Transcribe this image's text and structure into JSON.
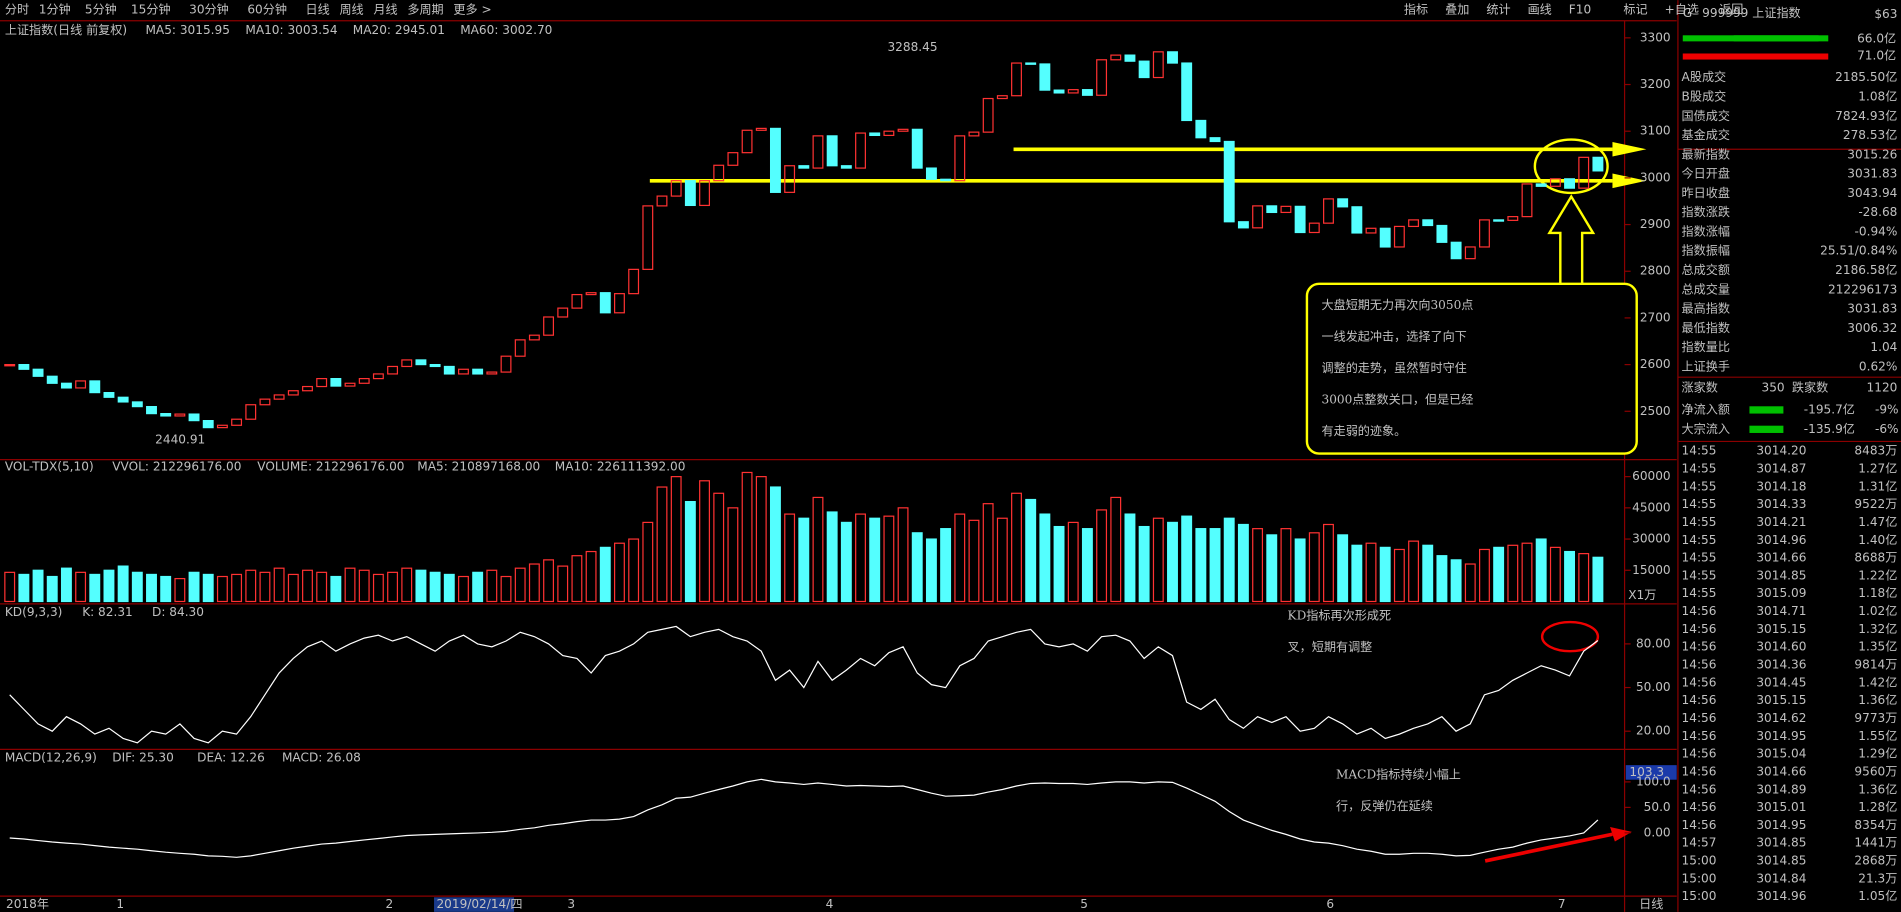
{
  "toolbar": {
    "left": [
      "分时",
      "1分钟",
      "5分钟",
      "15分钟",
      "30分钟",
      "60分钟",
      "日线",
      "周线",
      "月线",
      "多周期",
      "更多 >"
    ],
    "right": [
      "指标",
      "叠加",
      "统计",
      "画线",
      "F10",
      "标记",
      "+自选",
      "返回"
    ]
  },
  "price": {
    "type": "candlestick",
    "title": "上证指数(日线 前复权)",
    "ma_labels": [
      "MA5: 3015.95",
      "MA10: 3003.54",
      "MA20: 2945.01",
      "MA60: 3002.70"
    ],
    "high_label": "3288.45",
    "low_label": "2440.91",
    "ylim": [
      2399,
      3334
    ],
    "yticks": [
      2500,
      2600,
      2700,
      2800,
      2900,
      3000,
      3100,
      3200,
      3300
    ],
    "close": [
      2600,
      2590,
      2575,
      2560,
      2550,
      2565,
      2540,
      2530,
      2520,
      2510,
      2495,
      2490,
      2494,
      2480,
      2465,
      2470,
      2483,
      2514,
      2526,
      2535,
      2544,
      2553,
      2570,
      2554,
      2560,
      2570,
      2580,
      2596,
      2610,
      2600,
      2596,
      2580,
      2590,
      2580,
      2584,
      2618,
      2653,
      2663,
      2702,
      2721,
      2750,
      2754,
      2711,
      2752,
      2804,
      2940,
      2961,
      2994,
      2941,
      2994,
      3027,
      3054,
      3102,
      3106,
      2969,
      3026,
      3021,
      3090,
      3026,
      3021,
      3096,
      3091,
      3100,
      3104,
      3021,
      2997,
      2994,
      3090,
      3098,
      3170,
      3176,
      3246,
      3244,
      3188,
      3182,
      3189,
      3177,
      3253,
      3263,
      3250,
      3215,
      3270,
      3246,
      3123,
      3086,
      3078,
      2906,
      2893,
      2940,
      2926,
      2939,
      2883,
      2903,
      2955,
      2938,
      2882,
      2892,
      2852,
      2896,
      2910,
      2898,
      2862,
      2827,
      2852,
      2910,
      2909,
      2917,
      2987,
      2982,
      2998,
      2978,
      3044,
      3015
    ]
  },
  "volume": {
    "type": "bar",
    "labels": [
      "VOL-TDX(5,10)",
      "VVOL: 212296176.00",
      "VOLUME: 212296176.00",
      "MA5: 210897168.00",
      "MA10: 226111392.00"
    ],
    "unit": "X1万",
    "ylim": [
      0,
      67000
    ],
    "yticks": [
      15000,
      30000,
      45000,
      60000
    ],
    "values": [
      14000,
      13000,
      15000,
      12000,
      16000,
      14000,
      13000,
      15000,
      17000,
      14000,
      13000,
      12000,
      11000,
      14000,
      13000,
      12000,
      13000,
      15000,
      14000,
      16000,
      13000,
      15000,
      14000,
      12000,
      16000,
      15000,
      13000,
      14000,
      16000,
      15000,
      14000,
      13000,
      12000,
      14000,
      15000,
      12000,
      16000,
      18000,
      20000,
      17000,
      22000,
      24000,
      26000,
      28000,
      30000,
      38000,
      55000,
      60000,
      48000,
      58000,
      52000,
      45000,
      62000,
      60000,
      55000,
      42000,
      40000,
      50000,
      43000,
      38000,
      42000,
      40000,
      41000,
      45000,
      33000,
      30000,
      35000,
      42000,
      39000,
      47000,
      40000,
      52000,
      49000,
      42000,
      36000,
      38000,
      35000,
      44000,
      50000,
      42000,
      36000,
      40000,
      38000,
      41000,
      35000,
      35000,
      40000,
      37000,
      35000,
      32000,
      35000,
      30000,
      33000,
      37000,
      32000,
      27000,
      28000,
      26000,
      25000,
      29000,
      27000,
      22000,
      20000,
      18000,
      25000,
      26000,
      27000,
      28000,
      30000,
      26000,
      24000,
      23000,
      21229.6
    ]
  },
  "kd": {
    "type": "line",
    "labels": [
      "KD(9,3,3)",
      "K: 82.31",
      "D: 84.30"
    ],
    "ylim": [
      7.5,
      105.8
    ],
    "yticks": [
      {
        "value": 80,
        "label": "80.00"
      },
      {
        "value": 50,
        "label": "50.00"
      },
      {
        "value": 20,
        "label": "20.00"
      }
    ],
    "k": [
      45,
      35,
      25,
      20,
      30,
      25,
      18,
      22,
      15,
      12,
      20,
      18,
      25,
      15,
      12,
      20,
      18,
      30,
      45,
      60,
      70,
      78,
      82,
      75,
      80,
      84,
      86,
      82,
      85,
      80,
      75,
      82,
      86,
      80,
      78,
      82,
      88,
      85,
      80,
      72,
      70,
      60,
      72,
      75,
      80,
      88,
      90,
      92,
      85,
      88,
      90,
      85,
      82,
      75,
      55,
      62,
      50,
      68,
      55,
      62,
      70,
      65,
      74,
      78,
      60,
      52,
      50,
      65,
      70,
      82,
      85,
      88,
      90,
      80,
      78,
      80,
      75,
      85,
      86,
      82,
      70,
      78,
      72,
      40,
      35,
      42,
      28,
      22,
      30,
      26,
      30,
      20,
      22,
      30,
      25,
      18,
      22,
      15,
      18,
      22,
      25,
      30,
      20,
      25,
      45,
      48,
      55,
      60,
      65,
      62,
      58,
      75,
      82.31
    ]
  },
  "macd": {
    "type": "line",
    "labels": [
      "MACD(12,26,9)",
      "DIF: 25.30",
      "DEA: 12.26",
      "MACD: 26.08"
    ],
    "marker": "103.3",
    "ylim": [
      -124,
      159
    ],
    "yticks": [
      {
        "value": 100,
        "label": "100.0"
      },
      {
        "value": 50,
        "label": "50.0"
      },
      {
        "value": 0,
        "label": "0.00"
      }
    ],
    "dif": [
      -10,
      -12,
      -15,
      -18,
      -20,
      -22,
      -25,
      -28,
      -30,
      -32,
      -35,
      -38,
      -40,
      -42,
      -45,
      -46,
      -48,
      -45,
      -40,
      -35,
      -30,
      -26,
      -22,
      -20,
      -17,
      -14,
      -11,
      -8,
      -5,
      -4,
      -3,
      -2,
      -1,
      0,
      1,
      3,
      7,
      10,
      15,
      18,
      22,
      25,
      25,
      27,
      32,
      45,
      55,
      68,
      70,
      78,
      85,
      92,
      100,
      105,
      100,
      98,
      95,
      98,
      95,
      92,
      93,
      92,
      91,
      92,
      85,
      78,
      72,
      73,
      74,
      80,
      85,
      92,
      97,
      98,
      97,
      97,
      95,
      98,
      100,
      100,
      98,
      100,
      99,
      88,
      75,
      62,
      42,
      25,
      15,
      5,
      -3,
      -12,
      -18,
      -20,
      -25,
      -32,
      -36,
      -42,
      -42,
      -40,
      -40,
      -42,
      -45,
      -44,
      -38,
      -32,
      -28,
      -20,
      -14,
      -10,
      -6,
      0,
      25.3
    ]
  },
  "xaxis": [
    "2018年",
    "1",
    "2",
    "2019/02/14/四",
    "3",
    "4",
    "5",
    "6",
    "7",
    "日线"
  ],
  "annotations": {
    "price_box": [
      "大盘短期无力再次向3050点",
      "一线发起冲击，选择了向下",
      "调整的走势，虽然暂时守住",
      "3000点整数关口，但是已经",
      "有走弱的迹象。"
    ],
    "kd": [
      "KD指标再次形成死",
      "叉，短期有调整"
    ],
    "macd": [
      "MACD指标持续小幅上",
      "行，反弹仍在延续"
    ]
  },
  "panel": {
    "badge": "G",
    "title": "999999 上证指数",
    "tag": "$63",
    "bars": [
      "66.0亿",
      "71.0亿"
    ],
    "rows": [
      [
        "A股成交",
        "2185.50亿"
      ],
      [
        "B股成交",
        "1.08亿"
      ],
      [
        "国债成交",
        "7824.93亿"
      ],
      [
        "基金成交",
        "278.53亿"
      ],
      [
        "最新指数",
        "3015.26"
      ],
      [
        "今日开盘",
        "3031.83"
      ],
      [
        "昨日收盘",
        "3043.94"
      ],
      [
        "指数涨跌",
        "-28.68"
      ],
      [
        "指数涨幅",
        "-0.94%"
      ],
      [
        "指数振幅",
        "25.51/0.84%"
      ],
      [
        "总成交额",
        "2186.58亿"
      ],
      [
        "总成交量",
        "212296173"
      ],
      [
        "最高指数",
        "3031.83"
      ],
      [
        "最低指数",
        "3006.32"
      ],
      [
        "指数量比",
        "1.04"
      ],
      [
        "上证换手",
        "0.62%"
      ]
    ],
    "breadth": [
      "涨家数",
      "350",
      "跌家数",
      "1120"
    ],
    "flows": [
      [
        "净流入额",
        "-195.7亿",
        "-9%"
      ],
      [
        "大宗流入",
        "-135.9亿",
        "-6%"
      ]
    ],
    "trades": [
      [
        "14:55",
        "3014.20",
        "8483万"
      ],
      [
        "14:55",
        "3014.87",
        "1.27亿"
      ],
      [
        "14:55",
        "3014.18",
        "1.31亿"
      ],
      [
        "14:55",
        "3014.33",
        "9522万"
      ],
      [
        "14:55",
        "3014.21",
        "1.47亿"
      ],
      [
        "14:55",
        "3014.96",
        "1.40亿"
      ],
      [
        "14:55",
        "3014.66",
        "8688万"
      ],
      [
        "14:55",
        "3014.85",
        "1.22亿"
      ],
      [
        "14:55",
        "3015.09",
        "1.18亿"
      ],
      [
        "14:56",
        "3014.71",
        "1.02亿"
      ],
      [
        "14:56",
        "3015.15",
        "1.32亿"
      ],
      [
        "14:56",
        "3014.60",
        "1.35亿"
      ],
      [
        "14:56",
        "3014.36",
        "9814万"
      ],
      [
        "14:56",
        "3014.45",
        "1.42亿"
      ],
      [
        "14:56",
        "3015.15",
        "1.36亿"
      ],
      [
        "14:56",
        "3014.62",
        "9773万"
      ],
      [
        "14:56",
        "3014.95",
        "1.55亿"
      ],
      [
        "14:56",
        "3015.04",
        "1.29亿"
      ],
      [
        "14:56",
        "3014.66",
        "9560万"
      ],
      [
        "14:56",
        "3014.89",
        "1.36亿"
      ],
      [
        "14:56",
        "3015.01",
        "1.28亿"
      ],
      [
        "14:56",
        "3014.95",
        "8354万"
      ],
      [
        "14:57",
        "3014.85",
        "1441万"
      ],
      [
        "15:00",
        "3014.85",
        "2868万"
      ],
      [
        "15:00",
        "3014.84",
        "21.3万"
      ],
      [
        "15:00",
        "3014.96",
        "1.05亿"
      ]
    ]
  }
}
